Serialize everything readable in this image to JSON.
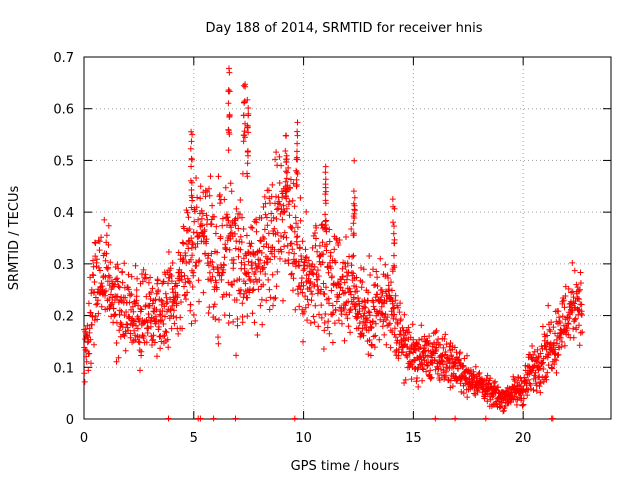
{
  "chart_data": {
    "type": "scatter",
    "title": "Day 188 of 2014, SRMTID for receiver hnis",
    "xlabel": "GPS time / hours",
    "ylabel": "SRMTID / TECUs",
    "xlim": [
      0,
      24
    ],
    "ylim": [
      0,
      0.7
    ],
    "xticks": [
      0,
      5,
      10,
      15,
      20
    ],
    "yticks": [
      0,
      0.1,
      0.2,
      0.3,
      0.4,
      0.5,
      0.6,
      0.7
    ],
    "xtick_labels": [
      "0",
      "5",
      "10",
      "15",
      "20"
    ],
    "ytick_labels": [
      "0",
      "0.1",
      "0.2",
      "0.3",
      "0.4",
      "0.5",
      "0.6",
      "0.7"
    ],
    "grid": true,
    "marker": "+",
    "color": "#ff0000",
    "series": [
      {
        "name": "SRMTID",
        "trend_x": [
          0,
          0.5,
          1,
          1.5,
          2,
          2.5,
          3,
          3.5,
          4,
          4.5,
          5,
          5.5,
          6,
          6.5,
          7,
          7.5,
          8,
          8.5,
          9,
          9.5,
          10,
          10.5,
          11,
          11.5,
          12,
          12.5,
          13,
          13.5,
          14,
          14.5,
          15,
          15.5,
          16,
          16.5,
          17,
          17.5,
          18,
          18.5,
          19,
          19.5,
          20,
          20.5,
          21,
          21.5,
          22,
          22.5,
          22.7
        ],
        "trend_y": [
          0.12,
          0.26,
          0.27,
          0.22,
          0.2,
          0.21,
          0.22,
          0.2,
          0.24,
          0.27,
          0.33,
          0.36,
          0.28,
          0.34,
          0.33,
          0.3,
          0.3,
          0.34,
          0.4,
          0.33,
          0.27,
          0.28,
          0.3,
          0.26,
          0.27,
          0.23,
          0.2,
          0.22,
          0.2,
          0.15,
          0.12,
          0.12,
          0.12,
          0.11,
          0.1,
          0.08,
          0.07,
          0.05,
          0.04,
          0.05,
          0.06,
          0.1,
          0.13,
          0.16,
          0.2,
          0.24,
          0.2
        ],
        "spread": [
          0.06,
          0.08,
          0.08,
          0.07,
          0.07,
          0.07,
          0.07,
          0.07,
          0.07,
          0.08,
          0.1,
          0.1,
          0.1,
          0.14,
          0.14,
          0.1,
          0.1,
          0.1,
          0.1,
          0.1,
          0.1,
          0.1,
          0.1,
          0.08,
          0.08,
          0.07,
          0.07,
          0.07,
          0.07,
          0.05,
          0.04,
          0.04,
          0.04,
          0.04,
          0.03,
          0.03,
          0.02,
          0.02,
          0.02,
          0.02,
          0.03,
          0.04,
          0.05,
          0.05,
          0.06,
          0.06,
          0.05
        ],
        "peaks": [
          {
            "x": 6.6,
            "y": 0.68
          },
          {
            "x": 7.3,
            "y": 0.68
          },
          {
            "x": 7.45,
            "y": 0.62
          },
          {
            "x": 4.9,
            "y": 0.56
          },
          {
            "x": 9.2,
            "y": 0.57
          },
          {
            "x": 9.7,
            "y": 0.58
          },
          {
            "x": 11.0,
            "y": 0.52
          },
          {
            "x": 12.3,
            "y": 0.51
          },
          {
            "x": 14.1,
            "y": 0.43
          }
        ]
      }
    ],
    "baseline_points": [
      3.85,
      5.2,
      5.3,
      5.9,
      6.9,
      9.6,
      16.0,
      16.9,
      18.3,
      21.3,
      21.35
    ]
  }
}
